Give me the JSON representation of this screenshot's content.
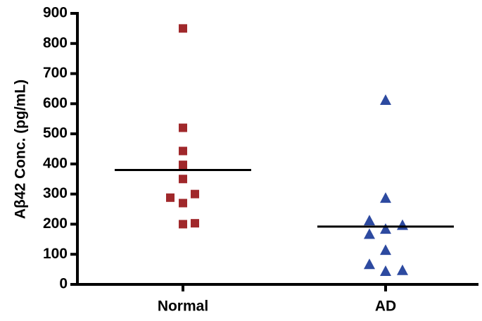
{
  "chart_data": {
    "type": "strip",
    "y_label": "Aβ42 Conc. (pg/mL)",
    "categories": [
      "Normal",
      "AD"
    ],
    "series": [
      {
        "color": "#a0282b",
        "marker": "square",
        "values": [
          850,
          520,
          443,
          397,
          350,
          300,
          288,
          270,
          203,
          200
        ],
        "mean": 380
      },
      {
        "color": "#2d4aa0",
        "marker": "triangle",
        "values": [
          610,
          285,
          210,
          195,
          182,
          165,
          112,
          65,
          45,
          42
        ],
        "mean": 192
      }
    ],
    "ylim": [
      0,
      900
    ],
    "yticks": [
      0,
      100,
      200,
      300,
      400,
      500,
      600,
      700,
      800,
      900
    ]
  }
}
